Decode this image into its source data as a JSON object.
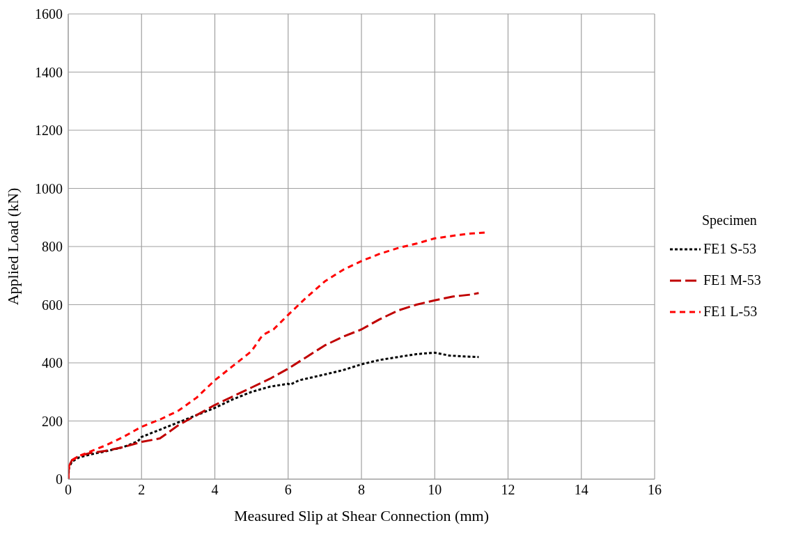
{
  "chart_data": {
    "type": "line",
    "xlabel": "Measured Slip at Shear Connection (mm)",
    "ylabel": "Applied Load (kN)",
    "legend_title": "Specimen",
    "legend": "right",
    "grid": true,
    "marker": "none",
    "xlim": [
      0,
      16
    ],
    "xticks": [
      0,
      2,
      4,
      6,
      8,
      10,
      12,
      14,
      16
    ],
    "ylim": [
      0,
      1600
    ],
    "yticks": [
      0,
      200,
      400,
      600,
      800,
      1000,
      1200,
      1400,
      1600
    ],
    "series": [
      {
        "name": "FE1 S-53",
        "color": "#000000",
        "line_style": "dotted",
        "x": [
          0,
          0.02,
          0.1,
          0.3,
          0.6,
          1,
          1.5,
          1.9,
          2,
          2.5,
          3,
          3.5,
          4,
          4.5,
          5,
          5.5,
          6,
          6.05,
          6.3,
          7,
          7.5,
          8,
          8.5,
          9,
          9.5,
          10,
          10.4,
          10.8,
          11.2
        ],
        "values": [
          0,
          40,
          60,
          75,
          85,
          95,
          110,
          130,
          145,
          170,
          195,
          220,
          245,
          275,
          300,
          318,
          328,
          325,
          340,
          360,
          375,
          395,
          410,
          420,
          430,
          435,
          425,
          422,
          420
        ]
      },
      {
        "name": "FE1 M-53",
        "color": "#c00000",
        "line_style": "dashed",
        "x": [
          0,
          0.02,
          0.1,
          0.3,
          0.6,
          1,
          1.5,
          2,
          2.5,
          3,
          3.5,
          4,
          4.5,
          5,
          5.5,
          6,
          6.5,
          7,
          7.5,
          8,
          8.5,
          9,
          9.5,
          10,
          10.5,
          11,
          11.2
        ],
        "values": [
          0,
          45,
          65,
          80,
          90,
          97,
          110,
          128,
          140,
          185,
          220,
          255,
          285,
          315,
          345,
          380,
          420,
          460,
          490,
          515,
          550,
          580,
          600,
          615,
          628,
          635,
          640
        ]
      },
      {
        "name": "FE1 L-53",
        "color": "#ff0000",
        "line_style": "dashed",
        "x": [
          0,
          0.02,
          0.1,
          0.3,
          0.6,
          1,
          1.5,
          2,
          2.5,
          3,
          3.5,
          4,
          4.5,
          5,
          5.3,
          5.6,
          6,
          6.5,
          7,
          7.5,
          8,
          8.5,
          9,
          9.5,
          10,
          10.5,
          11,
          11.4
        ],
        "values": [
          0,
          45,
          65,
          80,
          95,
          115,
          145,
          180,
          205,
          235,
          280,
          340,
          390,
          440,
          495,
          515,
          565,
          625,
          680,
          720,
          750,
          775,
          795,
          810,
          828,
          837,
          845,
          848
        ]
      }
    ]
  }
}
